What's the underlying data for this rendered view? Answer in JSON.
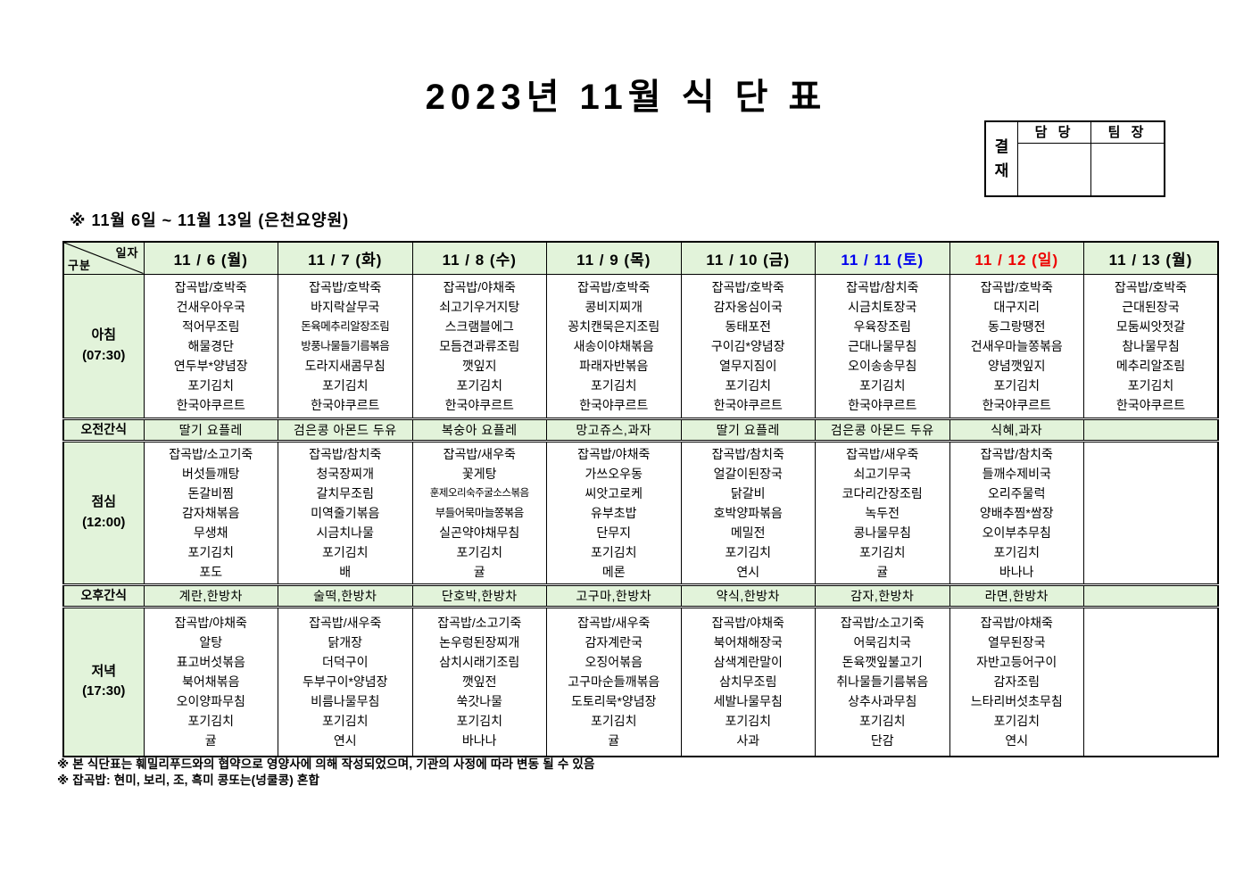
{
  "title": "2023년 11월 식 단 표",
  "approval": {
    "label": "결재",
    "columns": [
      "담 당",
      "팀 장"
    ]
  },
  "subtitle": "※ 11월 6일 ~ 11월 13일 (은천요양원)",
  "colors": {
    "header_bg": "#e2f3da",
    "saturday": "#0000ee",
    "sunday": "#ee0000",
    "weekday": "#000000",
    "border": "#000000"
  },
  "table": {
    "corner": {
      "top_right": "일자",
      "bottom_left": "구분"
    },
    "columns": [
      {
        "label": "11 / 6 (월)",
        "color": "#000000"
      },
      {
        "label": "11 / 7 (화)",
        "color": "#000000"
      },
      {
        "label": "11 / 8 (수)",
        "color": "#000000"
      },
      {
        "label": "11 / 9 (목)",
        "color": "#000000"
      },
      {
        "label": "11 / 10 (금)",
        "color": "#000000"
      },
      {
        "label": "11 / 11 (토)",
        "color": "#0000ee"
      },
      {
        "label": "11 / 12 (일)",
        "color": "#ee0000"
      },
      {
        "label": "11 / 13 (월)",
        "color": "#000000"
      }
    ],
    "rows": [
      {
        "name": "breakfast",
        "label": "아침",
        "time": "(07:30)",
        "kind": "meal",
        "cells": [
          [
            "잡곡밥/호박죽",
            "건새우아우국",
            "적어무조림",
            "해물경단",
            "연두부*양념장",
            "포기김치",
            "한국야쿠르트"
          ],
          [
            "잡곡밥/호박죽",
            "바지락살무국",
            "돈육메추리알장조림",
            "방풍나물들기름볶음",
            "도라지새콤무침",
            "포기김치",
            "한국야쿠르트"
          ],
          [
            "잡곡밥/야채죽",
            "쇠고기우거지탕",
            "스크램블에그",
            "모듬견과류조림",
            "깻잎지",
            "포기김치",
            "한국야쿠르트"
          ],
          [
            "잡곡밥/호박죽",
            "콩비지찌개",
            "꽁치캔묵은지조림",
            "새송이야채볶음",
            "파래자반볶음",
            "포기김치",
            "한국야쿠르트"
          ],
          [
            "잡곡밥/호박죽",
            "감자옹심이국",
            "동태포전",
            "구이김*양념장",
            "열무지짐이",
            "포기김치",
            "한국야쿠르트"
          ],
          [
            "잡곡밥/참치죽",
            "시금치토장국",
            "우육장조림",
            "근대나물무침",
            "오이송송무침",
            "포기김치",
            "한국야쿠르트"
          ],
          [
            "잡곡밥/호박죽",
            "대구지리",
            "동그랑땡전",
            "건새우마늘쫑볶음",
            "양념깻잎지",
            "포기김치",
            "한국야쿠르트"
          ],
          [
            "잡곡밥/호박죽",
            "근대된장국",
            "모둠씨앗젓갈",
            "참나물무침",
            "메추리알조림",
            "포기김치",
            "한국야쿠르트"
          ]
        ]
      },
      {
        "name": "morning-snack",
        "label": "오전간식",
        "kind": "snack",
        "cells": [
          "딸기 요플레",
          "검은콩 아몬드 두유",
          "복숭아 요플레",
          "망고쥬스,과자",
          "딸기 요플레",
          "검은콩 아몬드 두유",
          "식혜,과자",
          ""
        ]
      },
      {
        "name": "lunch",
        "label": "점심",
        "time": "(12:00)",
        "kind": "meal",
        "cells": [
          [
            "잡곡밥/소고기죽",
            "버섯들깨탕",
            "돈갈비찜",
            "감자채볶음",
            "무생채",
            "포기김치",
            "포도"
          ],
          [
            "잡곡밥/참치죽",
            "청국장찌개",
            "갈치무조림",
            "미역줄기볶음",
            "시금치나물",
            "포기김치",
            "배"
          ],
          [
            "잡곡밥/새우죽",
            "꽃게탕",
            "훈제오리숙주굴소스볶음",
            "부들어묵마늘쫑볶음",
            "실곤약야채무침",
            "포기김치",
            "귤"
          ],
          [
            "잡곡밥/야채죽",
            "가쓰오우동",
            "씨앗고로케",
            "유부초밥",
            "단무지",
            "포기김치",
            "메론"
          ],
          [
            "잡곡밥/참치죽",
            "얼갈이된장국",
            "닭갈비",
            "호박양파볶음",
            "메밀전",
            "포기김치",
            "연시"
          ],
          [
            "잡곡밥/새우죽",
            "쇠고기무국",
            "코다리간장조림",
            "녹두전",
            "콩나물무침",
            "포기김치",
            "귤"
          ],
          [
            "잡곡밥/참치죽",
            "들깨수제비국",
            "오리주물럭",
            "양배추찜*쌈장",
            "오이부추무침",
            "포기김치",
            "바나나"
          ],
          []
        ]
      },
      {
        "name": "afternoon-snack",
        "label": "오후간식",
        "kind": "snack",
        "cells": [
          "계란,한방차",
          "술떡,한방차",
          "단호박,한방차",
          "고구마,한방차",
          "약식,한방차",
          "감자,한방차",
          "라면,한방차",
          ""
        ]
      },
      {
        "name": "dinner",
        "label": "저녁",
        "time": "(17:30)",
        "kind": "meal",
        "cells": [
          [
            "잡곡밥/야채죽",
            "알탕",
            "표고버섯볶음",
            "북어채볶음",
            "오이양파무침",
            "포기김치",
            "귤"
          ],
          [
            "잡곡밥/새우죽",
            "닭개장",
            "더덕구이",
            "두부구이*양념장",
            "비름나물무침",
            "포기김치",
            "연시"
          ],
          [
            "잡곡밥/소고기죽",
            "논우렁된장찌개",
            "삼치시래기조림",
            "깻잎전",
            "쑥갓나물",
            "포기김치",
            "바나나"
          ],
          [
            "잡곡밥/새우죽",
            "감자계란국",
            "오징어볶음",
            "고구마순들깨볶음",
            "도토리묵*양념장",
            "포기김치",
            "귤"
          ],
          [
            "잡곡밥/야채죽",
            "북어채해장국",
            "삼색계란말이",
            "삼치무조림",
            "세발나물무침",
            "포기김치",
            "사과"
          ],
          [
            "잡곡밥/소고기죽",
            "어묵김치국",
            "돈육깻잎불고기",
            "취나물들기름볶음",
            "상추사과무침",
            "포기김치",
            "단감"
          ],
          [
            "잡곡밥/야채죽",
            "열무된장국",
            "자반고등어구이",
            "감자조림",
            "느타리버섯초무침",
            "포기김치",
            "연시"
          ],
          []
        ]
      }
    ]
  },
  "footnotes": [
    "※ 본 식단표는 훼밀리푸드와의 협약으로 영양사에 의해 작성되었으며, 기관의 사정에 따라 변동 될 수 있음",
    "※ 잡곡밥: 현미, 보리, 조, 흑미 콩또는(넝쿨콩) 혼합"
  ]
}
